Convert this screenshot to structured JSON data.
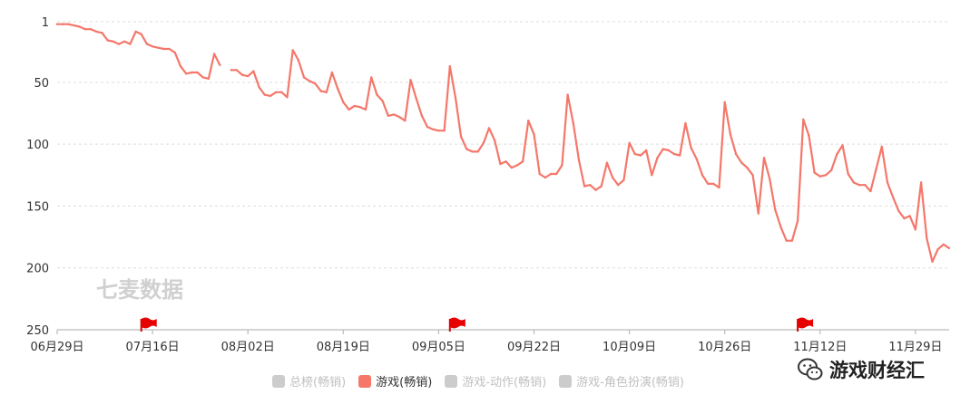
{
  "chart_data": {
    "type": "line",
    "title": "",
    "y_inverted": true,
    "ylim": [
      1,
      250
    ],
    "y_ticks": [
      1,
      50,
      100,
      150,
      200,
      250
    ],
    "x_tick_labels": [
      "06月29日",
      "07月16日",
      "08月02日",
      "08月19日",
      "09月05日",
      "09月22日",
      "10月09日",
      "10月26日",
      "11月12日",
      "11月29日"
    ],
    "grid": true,
    "series": [
      {
        "name": "游戏(畅销)",
        "color": "#f4776a",
        "segments": [
          [
            [
              "06-29",
              3
            ],
            [
              "06-30",
              3
            ],
            [
              "07-01",
              3
            ],
            [
              "07-02",
              4
            ],
            [
              "07-03",
              5
            ],
            [
              "07-04",
              7
            ],
            [
              "07-05",
              7
            ],
            [
              "07-06",
              9
            ],
            [
              "07-07",
              10
            ],
            [
              "07-08",
              16
            ],
            [
              "07-09",
              17
            ],
            [
              "07-10",
              19
            ],
            [
              "07-11",
              17
            ],
            [
              "07-12",
              19
            ],
            [
              "07-13",
              9
            ],
            [
              "07-14",
              11
            ],
            [
              "07-15",
              19
            ],
            [
              "07-16",
              21
            ],
            [
              "07-17",
              22
            ],
            [
              "07-18",
              23
            ],
            [
              "07-19",
              23
            ],
            [
              "07-20",
              26
            ],
            [
              "07-21",
              37
            ],
            [
              "07-22",
              43
            ],
            [
              "07-23",
              42
            ],
            [
              "07-24",
              42
            ],
            [
              "07-25",
              46
            ],
            [
              "07-26",
              47
            ],
            [
              "07-27",
              27
            ],
            [
              "07-28",
              36
            ]
          ],
          [
            [
              "07-30",
              40
            ],
            [
              "07-31",
              40
            ],
            [
              "08-01",
              44
            ],
            [
              "08-02",
              45
            ],
            [
              "08-03",
              41
            ],
            [
              "08-04",
              54
            ],
            [
              "08-05",
              60
            ],
            [
              "08-06",
              61
            ],
            [
              "08-07",
              58
            ],
            [
              "08-08",
              58
            ],
            [
              "08-09",
              62
            ],
            [
              "08-10",
              24
            ],
            [
              "08-11",
              32
            ],
            [
              "08-12",
              46
            ],
            [
              "08-13",
              49
            ],
            [
              "08-14",
              51
            ],
            [
              "08-15",
              57
            ],
            [
              "08-16",
              58
            ],
            [
              "08-17",
              42
            ],
            [
              "08-18",
              55
            ],
            [
              "08-19",
              66
            ],
            [
              "08-20",
              72
            ],
            [
              "08-21",
              69
            ],
            [
              "08-22",
              70
            ],
            [
              "08-23",
              72
            ],
            [
              "08-24",
              46
            ],
            [
              "08-25",
              60
            ],
            [
              "08-26",
              65
            ],
            [
              "08-27",
              77
            ],
            [
              "08-28",
              76
            ],
            [
              "08-29",
              78
            ],
            [
              "08-30",
              81
            ],
            [
              "08-31",
              48
            ],
            [
              "09-01",
              63
            ],
            [
              "09-02",
              77
            ],
            [
              "09-03",
              86
            ],
            [
              "09-04",
              88
            ],
            [
              "09-05",
              89
            ],
            [
              "09-06",
              89
            ],
            [
              "09-07",
              37
            ],
            [
              "09-08",
              62
            ],
            [
              "09-09",
              94
            ],
            [
              "09-10",
              104
            ],
            [
              "09-11",
              106
            ],
            [
              "09-12",
              106
            ],
            [
              "09-13",
              99
            ],
            [
              "09-14",
              87
            ],
            [
              "09-15",
              97
            ],
            [
              "09-16",
              116
            ],
            [
              "09-17",
              114
            ],
            [
              "09-18",
              119
            ],
            [
              "09-19",
              117
            ],
            [
              "09-20",
              114
            ],
            [
              "09-21",
              81
            ],
            [
              "09-22",
              92
            ],
            [
              "09-23",
              124
            ],
            [
              "09-24",
              127
            ],
            [
              "09-25",
              124
            ],
            [
              "09-26",
              124
            ],
            [
              "09-27",
              117
            ],
            [
              "09-28",
              60
            ],
            [
              "09-29",
              83
            ],
            [
              "09-30",
              113
            ],
            [
              "10-01",
              134
            ],
            [
              "10-02",
              133
            ],
            [
              "10-03",
              137
            ],
            [
              "10-04",
              134
            ],
            [
              "10-05",
              115
            ],
            [
              "10-06",
              127
            ],
            [
              "10-07",
              133
            ],
            [
              "10-08",
              129
            ],
            [
              "10-09",
              99
            ],
            [
              "10-10",
              108
            ],
            [
              "10-11",
              109
            ],
            [
              "10-12",
              105
            ],
            [
              "10-13",
              125
            ],
            [
              "10-14",
              111
            ],
            [
              "10-15",
              104
            ],
            [
              "10-16",
              105
            ],
            [
              "10-17",
              108
            ],
            [
              "10-18",
              109
            ],
            [
              "10-19",
              83
            ],
            [
              "10-20",
              103
            ],
            [
              "10-21",
              112
            ],
            [
              "10-22",
              125
            ],
            [
              "10-23",
              132
            ],
            [
              "10-24",
              132
            ],
            [
              "10-25",
              135
            ],
            [
              "10-26",
              66
            ],
            [
              "10-27",
              92
            ],
            [
              "10-28",
              108
            ],
            [
              "10-29",
              115
            ],
            [
              "10-30",
              119
            ],
            [
              "10-31",
              125
            ],
            [
              "11-01",
              156
            ],
            [
              "11-02",
              111
            ],
            [
              "11-03",
              128
            ],
            [
              "11-04",
              153
            ],
            [
              "11-05",
              167
            ],
            [
              "11-06",
              178
            ],
            [
              "11-07",
              178
            ],
            [
              "11-08",
              162
            ],
            [
              "11-09",
              80
            ],
            [
              "11-10",
              93
            ],
            [
              "11-11",
              123
            ],
            [
              "11-12",
              126
            ],
            [
              "11-13",
              125
            ],
            [
              "11-14",
              121
            ],
            [
              "11-15",
              108
            ],
            [
              "11-16",
              101
            ],
            [
              "11-17",
              124
            ],
            [
              "11-18",
              131
            ],
            [
              "11-19",
              133
            ],
            [
              "11-20",
              133
            ],
            [
              "11-21",
              138
            ],
            [
              "11-22",
              120
            ],
            [
              "11-23",
              102
            ],
            [
              "11-24",
              131
            ],
            [
              "11-25",
              143
            ],
            [
              "11-26",
              154
            ],
            [
              "11-27",
              160
            ],
            [
              "11-28",
              158
            ],
            [
              "11-29",
              169
            ],
            [
              "11-30",
              131
            ],
            [
              "12-01",
              176
            ],
            [
              "12-02",
              195
            ],
            [
              "12-03",
              185
            ],
            [
              "12-04",
              181
            ],
            [
              "12-05",
              184
            ]
          ]
        ]
      }
    ],
    "event_flags": [
      "07-14",
      "09-07",
      "11-08"
    ]
  },
  "watermark": "七麦数据",
  "legend": [
    {
      "label": "总榜(畅销)",
      "active": false,
      "color": "#cccccc"
    },
    {
      "label": "游戏(畅销)",
      "active": true,
      "color": "#f4776a"
    },
    {
      "label": "游戏-动作(畅销)",
      "active": false,
      "color": "#cccccc"
    },
    {
      "label": "游戏-角色扮演(畅销)",
      "active": false,
      "color": "#cccccc"
    }
  ],
  "brand": {
    "name": "游戏财经汇",
    "icon": "wechat-icon"
  }
}
